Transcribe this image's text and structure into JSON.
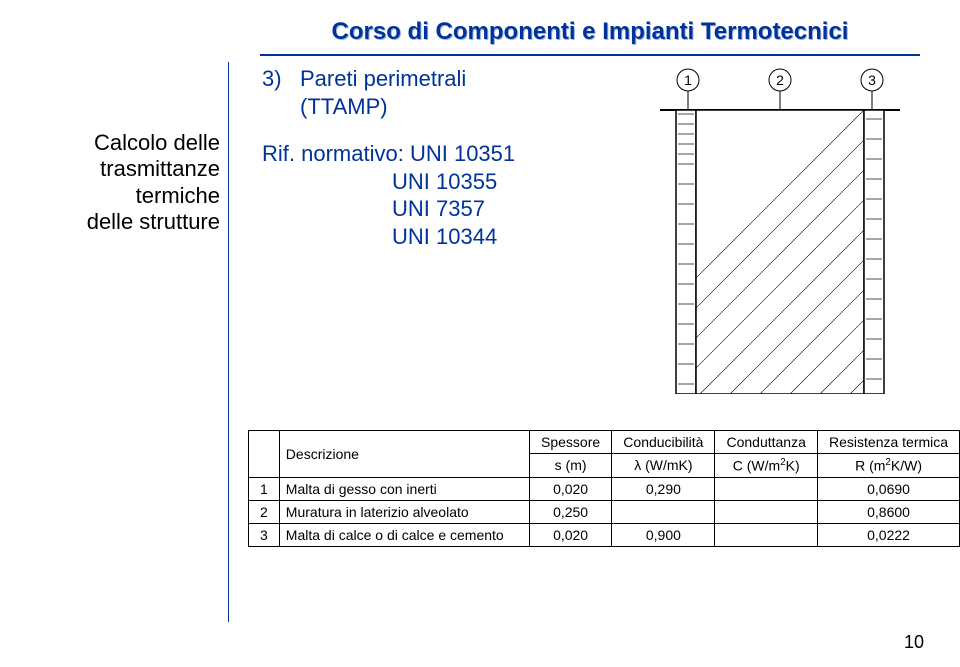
{
  "header": {
    "course_title": "Corso di Componenti e Impianti Termotecnici"
  },
  "left": {
    "l1": "Calcolo delle",
    "l2": "trasmittanze",
    "l3": "termiche",
    "l4": "delle strutture"
  },
  "section": {
    "num": "3)",
    "title": "Pareti perimetrali",
    "sub": "(TTAMP)"
  },
  "norm": {
    "prefix": "Rif. normativo:",
    "r1": "UNI 10351",
    "r2": "UNI 10355",
    "r3": "UNI 7357",
    "r4": "UNI 10344"
  },
  "diagram": {
    "labels": {
      "one": "1",
      "two": "2",
      "three": "3"
    },
    "colors": {
      "stroke": "#000000",
      "fill_wall": "#ffffff",
      "hatch": "#000000",
      "mortar": "#888888",
      "circle_fill": "#ffffff"
    }
  },
  "table": {
    "head": {
      "desc": "Descrizione",
      "sp1": "Spessore",
      "sp2": "s (m)",
      "cond1": "Conducibilità",
      "cond2": "λ (W/mK)",
      "cdt1": "Conduttanza",
      "cdt2_pre": "C (W/m",
      "cdt2_suf": "K)",
      "res1": "Resistenza termica",
      "res2_pre": "R (m",
      "res2_suf": "K/W)"
    },
    "rows": [
      {
        "n": "1",
        "desc": "Malta di gesso con inerti",
        "sp": "0,020",
        "cond": "0,290",
        "cdt": "",
        "res": "0,0690"
      },
      {
        "n": "2",
        "desc": "Muratura in laterizio alveolato",
        "sp": "0,250",
        "cond": "",
        "cdt": "",
        "res": "0,8600"
      },
      {
        "n": "3",
        "desc": "Malta di calce o di calce e cemento",
        "sp": "0,020",
        "cond": "0,900",
        "cdt": "",
        "res": "0,0222"
      }
    ]
  },
  "page_number": "10"
}
